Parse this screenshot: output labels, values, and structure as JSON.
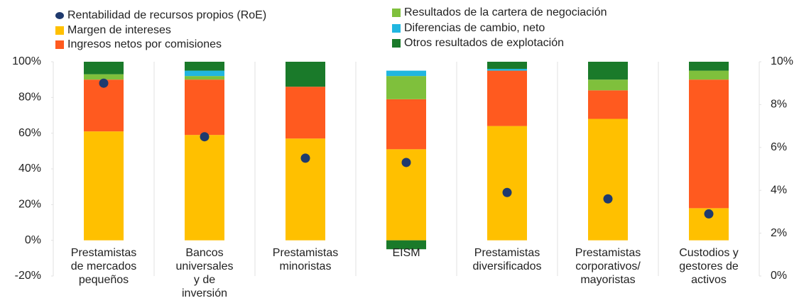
{
  "chart_data": {
    "type": "bar",
    "stacked": true,
    "categories": [
      [
        "Prestamistas",
        "de mercados",
        "pequeños"
      ],
      [
        "Bancos",
        "universales",
        "y de",
        "inversión"
      ],
      [
        "Prestamistas",
        "minoristas"
      ],
      [
        "EISM"
      ],
      [
        "Prestamistas",
        "diversificados"
      ],
      [
        "Prestamistas",
        "corporativos/",
        "mayoristas"
      ],
      [
        "Custodios y",
        "gestores de",
        "activos"
      ]
    ],
    "series": [
      {
        "name": "Rentabilidad de recursos propios (RoE)",
        "color": "#1f3a6e",
        "axis": "y2",
        "marker": "dot",
        "values": [
          9.0,
          6.5,
          5.5,
          5.3,
          3.9,
          3.6,
          2.9
        ]
      },
      {
        "name": "Margen de intereses",
        "color": "#ffc000",
        "values": [
          61,
          59,
          57,
          51,
          64,
          68,
          18
        ]
      },
      {
        "name": "Ingresos netos por comisiones",
        "color": "#ff5a1f",
        "values": [
          29,
          31,
          29,
          28,
          31,
          16,
          72
        ]
      },
      {
        "name": "Resultados de la cartera de negociación",
        "color": "#7fc03c",
        "values": [
          3,
          2,
          0,
          13,
          0,
          6,
          5
        ]
      },
      {
        "name": "Diferencias de cambio, neto",
        "color": "#20b6e0",
        "values": [
          0,
          3,
          0,
          3,
          1,
          0,
          0
        ]
      },
      {
        "name": "Otros resultados de explotación",
        "color": "#1a7a2a",
        "values": [
          7,
          5,
          14,
          -5,
          4,
          10,
          5
        ]
      }
    ],
    "ylim": [
      -20,
      100
    ],
    "yticks": [
      {
        "value": -20,
        "label": "-20%"
      },
      {
        "value": 0,
        "label": "0%"
      },
      {
        "value": 20,
        "label": "20%"
      },
      {
        "value": 40,
        "label": "40%"
      },
      {
        "value": 60,
        "label": "60%"
      },
      {
        "value": 80,
        "label": "80%"
      },
      {
        "value": 100,
        "label": "100%"
      }
    ],
    "y2lim": [
      0,
      10
    ],
    "y2ticks": [
      {
        "value": 0,
        "label": "0%"
      },
      {
        "value": 2,
        "label": "2%"
      },
      {
        "value": 4,
        "label": "4%"
      },
      {
        "value": 6,
        "label": "6%"
      },
      {
        "value": 8,
        "label": "8%"
      },
      {
        "value": 10,
        "label": "10%"
      }
    ],
    "grid": false
  }
}
